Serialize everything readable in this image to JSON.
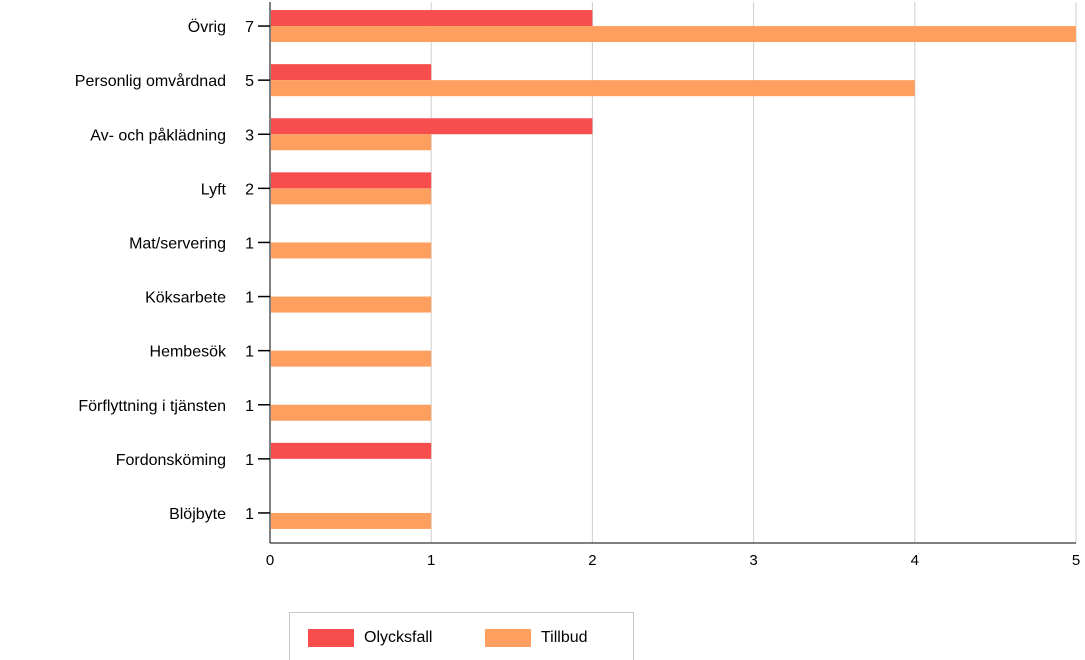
{
  "chart_data": {
    "type": "bar",
    "orientation": "horizontal",
    "categories": [
      "Övrig",
      "Personlig omvårdnad",
      "Av- och påklädning",
      "Lyft",
      "Mat/servering",
      "Köksarbete",
      "Hembesök",
      "Förflyttning i tjänsten",
      "Fordonsköming",
      "Blöjbyte"
    ],
    "category_totals": [
      "7",
      "5",
      "3",
      "2",
      "1",
      "1",
      "1",
      "1",
      "1",
      "1"
    ],
    "series": [
      {
        "name": "Olycksfall",
        "color": "#f84d4d",
        "values": [
          2,
          1,
          2,
          1,
          0,
          0,
          0,
          0,
          1,
          0
        ]
      },
      {
        "name": "Tillbud",
        "color": "#ff9f5f",
        "values": [
          5,
          4,
          1,
          1,
          1,
          1,
          1,
          1,
          0,
          1
        ]
      }
    ],
    "xlim": [
      0,
      5
    ],
    "xticks": [
      "0",
      "1",
      "2",
      "3",
      "4",
      "5"
    ],
    "grid": true,
    "legend_position": "bottom"
  }
}
